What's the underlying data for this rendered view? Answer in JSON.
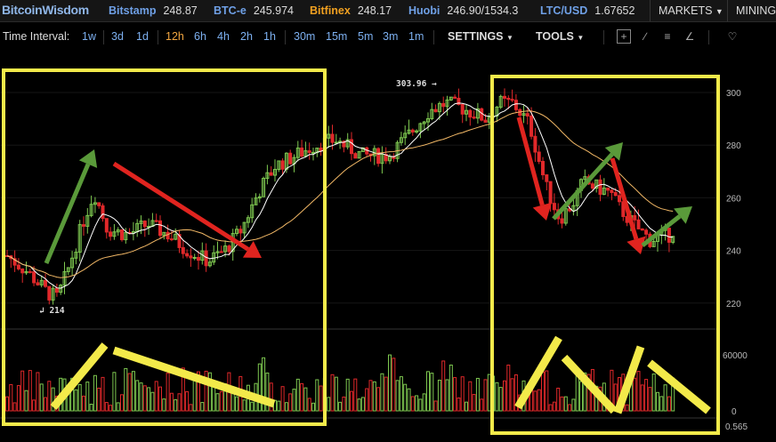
{
  "header": {
    "logo": "BitcoinWisdom",
    "exchanges": [
      {
        "name": "Bitstamp",
        "price": "248.87"
      },
      {
        "name": "BTC-e",
        "price": "245.974"
      },
      {
        "name": "Bitfinex",
        "price": "248.17"
      },
      {
        "name": "Huobi",
        "price": "246.90/1534.3"
      },
      {
        "name": "LTC/USD",
        "price": "1.67652"
      }
    ],
    "markets_label": "MARKETS",
    "mining_label": "MINING"
  },
  "toolbar": {
    "interval_label": "Time Interval:",
    "intervals": [
      "1w",
      "3d",
      "1d",
      "12h",
      "6h",
      "4h",
      "2h",
      "1h",
      "30m",
      "15m",
      "5m",
      "3m",
      "1m"
    ],
    "active_interval": "12h",
    "settings_label": "SETTINGS",
    "tools_label": "TOOLS"
  },
  "chart": {
    "y_axis_labels": [
      "300",
      "280",
      "260",
      "240",
      "220"
    ],
    "volume_axis_labels": [
      "60000",
      "0"
    ],
    "indicator_axis_label": "0.565",
    "high_annotation": "303.96",
    "low_annotation": "214",
    "colors": {
      "up": "#7ec850",
      "down": "#e0282a",
      "ma_fast": "#ffffff",
      "ma_slow": "#f2b866",
      "highlight_box": "#f3ea4a",
      "arrow_green": "#5a9a3a",
      "arrow_red": "#e0241f"
    }
  }
}
